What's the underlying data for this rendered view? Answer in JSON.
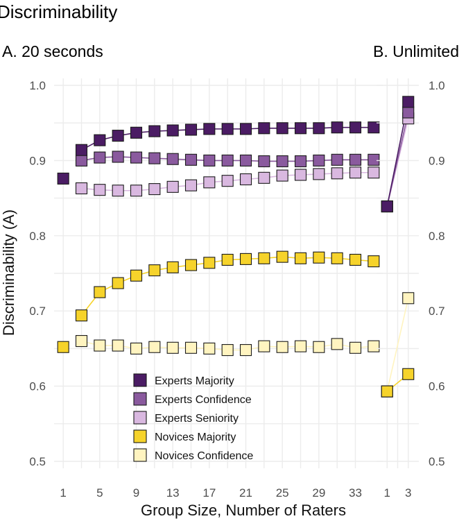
{
  "title": "Discriminability",
  "chart_data": [
    {
      "panel": "A. 20 seconds",
      "type": "line",
      "xlabel": "Group Size, Number of Raters",
      "ylabel": "Discriminability (A)",
      "ylim": [
        0.5,
        1.0
      ],
      "yticks": [
        "1.0",
        "0.9",
        "0.8",
        "0.7",
        "0.6",
        "0.5"
      ],
      "xticks": [
        "1",
        "5",
        "9",
        "13",
        "17",
        "21",
        "25",
        "29",
        "33"
      ],
      "xlim": [
        0,
        36
      ],
      "legend_position": "bottom-left",
      "series": [
        {
          "name": "Experts Majority",
          "color": "#4b1c64",
          "x": [
            3,
            5,
            7,
            9,
            11,
            13,
            15,
            17,
            19,
            21,
            23,
            25,
            27,
            29,
            31,
            33,
            35
          ],
          "values": [
            0.914,
            0.927,
            0.933,
            0.937,
            0.939,
            0.94,
            0.941,
            0.942,
            0.942,
            0.942,
            0.943,
            0.943,
            0.943,
            0.943,
            0.944,
            0.944,
            0.944
          ]
        },
        {
          "name": "Experts Confidence",
          "color": "#8a5a9e",
          "x": [
            3,
            5,
            7,
            9,
            11,
            13,
            15,
            17,
            19,
            21,
            23,
            25,
            27,
            29,
            31,
            33,
            35
          ],
          "values": [
            0.9,
            0.904,
            0.905,
            0.904,
            0.903,
            0.902,
            0.901,
            0.9,
            0.9,
            0.9,
            0.899,
            0.899,
            0.899,
            0.9,
            0.901,
            0.901,
            0.901
          ]
        },
        {
          "name": "Experts Seniority",
          "color": "#d9b8e0",
          "x": [
            3,
            5,
            7,
            9,
            11,
            13,
            15,
            17,
            19,
            21,
            23,
            25,
            27,
            29,
            31,
            33,
            35
          ],
          "values": [
            0.863,
            0.861,
            0.86,
            0.86,
            0.862,
            0.865,
            0.867,
            0.871,
            0.873,
            0.875,
            0.877,
            0.88,
            0.881,
            0.882,
            0.883,
            0.884,
            0.884
          ]
        },
        {
          "name": "Novices Majority",
          "color": "#f6d32b",
          "x": [
            3,
            5,
            7,
            9,
            11,
            13,
            15,
            17,
            19,
            21,
            23,
            25,
            27,
            29,
            31,
            33,
            35
          ],
          "values": [
            0.694,
            0.725,
            0.737,
            0.747,
            0.754,
            0.758,
            0.761,
            0.764,
            0.768,
            0.769,
            0.77,
            0.772,
            0.77,
            0.771,
            0.77,
            0.768,
            0.766
          ]
        },
        {
          "name": "Novices Confidence",
          "color": "#fff4c0",
          "x": [
            3,
            5,
            7,
            9,
            11,
            13,
            15,
            17,
            19,
            21,
            23,
            25,
            27,
            29,
            31,
            33,
            35
          ],
          "values": [
            0.66,
            0.654,
            0.654,
            0.65,
            0.652,
            0.651,
            0.651,
            0.65,
            0.648,
            0.648,
            0.653,
            0.652,
            0.653,
            0.652,
            0.656,
            0.651,
            0.653
          ]
        }
      ],
      "single_rater": {
        "x": [
          1,
          1
        ],
        "values": [
          0.876,
          0.652
        ],
        "colors": [
          "#4b1c64",
          "#f6d32b"
        ]
      }
    },
    {
      "panel": "B. Unlimited",
      "type": "line",
      "ylim": [
        0.5,
        1.0
      ],
      "yticks": [
        "1.0",
        "0.9",
        "0.8",
        "0.7",
        "0.6",
        "0.5"
      ],
      "xticks": [
        "1",
        "3"
      ],
      "xlim": [
        0,
        4
      ],
      "series": [
        {
          "name": "Experts Majority",
          "color": "#4b1c64",
          "x": [
            1,
            3
          ],
          "values": [
            0.839,
            0.978
          ]
        },
        {
          "name": "Experts Confidence",
          "color": "#8a5a9e",
          "x": [
            1,
            3
          ],
          "values": [
            0.839,
            0.964
          ]
        },
        {
          "name": "Experts Seniority",
          "color": "#d9b8e0",
          "x": [
            1,
            3
          ],
          "values": [
            0.839,
            0.956
          ]
        },
        {
          "name": "Novices Majority",
          "color": "#f6d32b",
          "x": [
            1,
            3
          ],
          "values": [
            0.593,
            0.616
          ]
        },
        {
          "name": "Novices Confidence",
          "color": "#fff4c0",
          "x": [
            1,
            3
          ],
          "values": [
            0.593,
            0.717
          ]
        }
      ]
    }
  ]
}
